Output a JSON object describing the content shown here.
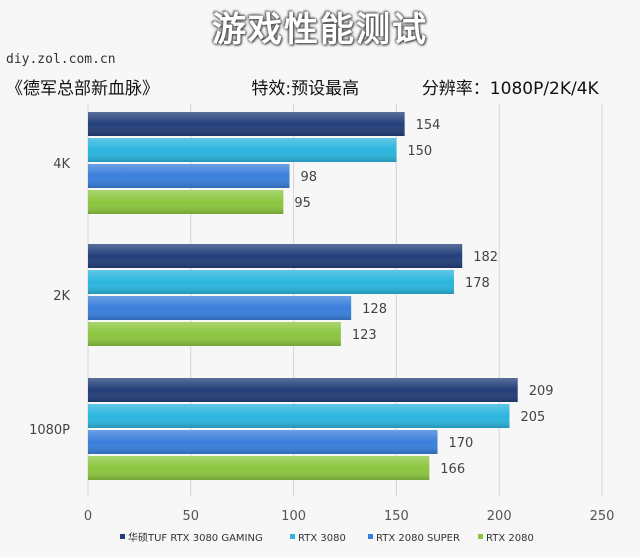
{
  "header": {
    "title": "游戏性能测试",
    "watermark": "diy.zol.com.cn",
    "source": "《德军总部新血脉》",
    "effect": "特效:预设最高",
    "resolution": "分辨率：1080P/2K/4K"
  },
  "chart_data": {
    "type": "bar",
    "orientation": "horizontal",
    "title": "游戏性能测试",
    "categories": [
      "4K",
      "2K",
      "1080P"
    ],
    "series": [
      {
        "name": "华硕TUF RTX 3080 GAMING",
        "values": [
          154,
          182,
          209
        ],
        "color": "#233f7a"
      },
      {
        "name": "RTX 3080",
        "values": [
          150,
          178,
          205
        ],
        "color": "#2bb5de"
      },
      {
        "name": "RTX 2080 SUPER",
        "values": [
          98,
          128,
          170
        ],
        "color": "#3a7fdc"
      },
      {
        "name": "RTX 2080",
        "values": [
          95,
          123,
          166
        ],
        "color": "#8cc63f"
      }
    ],
    "xlim": [
      0,
      250
    ],
    "xticks": [
      "0",
      "50",
      "100",
      "150",
      "200",
      "250"
    ],
    "grid": true,
    "legend_position": "bottom"
  }
}
